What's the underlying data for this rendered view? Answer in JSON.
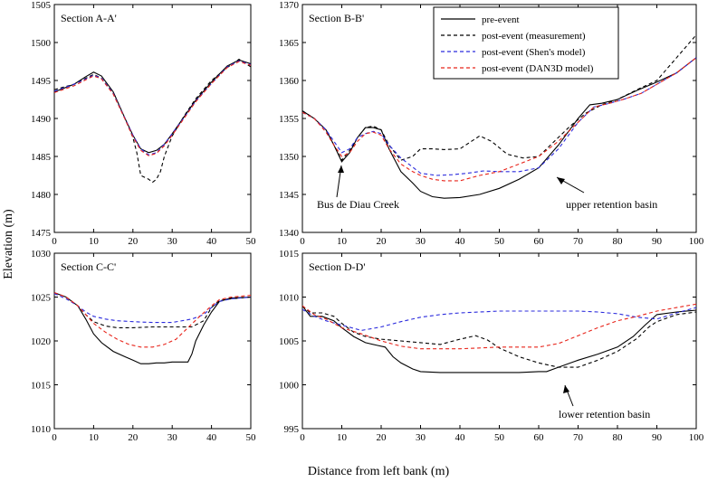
{
  "figure": {
    "ylabel": "Elevation (m)",
    "xlabel": "Distance from left bank (m)"
  },
  "styles": {
    "pre-event": {
      "color": "#000000",
      "dash": ""
    },
    "post-event (measurement)": {
      "color": "#000000",
      "dash": "4,3"
    },
    "post-event (Shen's model)": {
      "color": "#2b2bdd",
      "dash": "4,3"
    },
    "post-event (DAN3D model)": {
      "color": "#e8241a",
      "dash": "4,3"
    }
  },
  "legend": [
    "pre-event",
    "post-event (measurement)",
    "post-event (Shen's model)",
    "post-event (DAN3D model)"
  ],
  "chart_data": [
    {
      "id": "A",
      "type": "line",
      "title": "Section A-A'",
      "xlim": [
        0,
        50
      ],
      "ylim": [
        1475,
        1505
      ],
      "xticks": [
        0,
        10,
        20,
        30,
        40,
        50
      ],
      "yticks": [
        1475,
        1480,
        1485,
        1490,
        1495,
        1500,
        1505
      ],
      "series": [
        {
          "name": "pre-event",
          "x": [
            0,
            5,
            8,
            10,
            12,
            15,
            18,
            20,
            22,
            24,
            26,
            28,
            30,
            33,
            36,
            40,
            44,
            47,
            50
          ],
          "y": [
            1493.5,
            1494.5,
            1495.5,
            1496.1,
            1495.6,
            1493.5,
            1490,
            1487.8,
            1486,
            1485.5,
            1485.8,
            1486.6,
            1488,
            1490.2,
            1492.4,
            1494.8,
            1496.9,
            1497.7,
            1497.2
          ]
        },
        {
          "name": "post-event (measurement)",
          "x": [
            0,
            5,
            8,
            10,
            12,
            15,
            18,
            20,
            21,
            22,
            24,
            25,
            26,
            27,
            28,
            30,
            33,
            36,
            40,
            44,
            47,
            50
          ],
          "y": [
            1493.8,
            1494.5,
            1495.3,
            1495.8,
            1495.3,
            1493.3,
            1490,
            1487.5,
            1485.5,
            1482.5,
            1482,
            1481.6,
            1482,
            1483,
            1485,
            1487.7,
            1490.3,
            1492.6,
            1495,
            1496.7,
            1497.8,
            1496.8
          ]
        },
        {
          "name": "post-event (Shen's model)",
          "x": [
            0,
            5,
            8,
            10,
            12,
            15,
            18,
            20,
            22,
            24,
            26,
            28,
            30,
            33,
            36,
            40,
            44,
            47,
            50
          ],
          "y": [
            1493.6,
            1494.5,
            1495.2,
            1495.7,
            1495.3,
            1493.3,
            1490,
            1487.8,
            1486,
            1485.2,
            1485.5,
            1486.6,
            1488,
            1490.1,
            1492.3,
            1494.6,
            1496.8,
            1497.6,
            1497.1
          ]
        },
        {
          "name": "post-event (DAN3D model)",
          "x": [
            0,
            5,
            8,
            10,
            12,
            15,
            18,
            20,
            22,
            24,
            26,
            28,
            30,
            33,
            36,
            40,
            44,
            47,
            50
          ],
          "y": [
            1493.4,
            1494.3,
            1495.1,
            1495.6,
            1495.2,
            1493.2,
            1489.9,
            1487.6,
            1485.8,
            1485.1,
            1485.4,
            1486.4,
            1487.8,
            1490,
            1492.2,
            1494.6,
            1496.7,
            1497.5,
            1497
          ]
        }
      ]
    },
    {
      "id": "B",
      "type": "line",
      "title": "Section B-B'",
      "xlim": [
        0,
        100
      ],
      "ylim": [
        1340,
        1370
      ],
      "xticks": [
        0,
        10,
        20,
        30,
        40,
        50,
        60,
        70,
        80,
        90,
        100
      ],
      "yticks": [
        1340,
        1345,
        1350,
        1355,
        1360,
        1365,
        1370
      ],
      "annotations": [
        "Bus de Diau Creek",
        "upper retention basin"
      ],
      "series": [
        {
          "name": "pre-event",
          "x": [
            0,
            3,
            6,
            8,
            10,
            12,
            14,
            16,
            18,
            20,
            22,
            25,
            28,
            30,
            33,
            36,
            40,
            45,
            50,
            55,
            60,
            65,
            70,
            73,
            76,
            80,
            85,
            90,
            95,
            100
          ],
          "y": [
            1356,
            1355,
            1353.5,
            1351.5,
            1349.3,
            1350.5,
            1352.5,
            1353.8,
            1353.8,
            1353.5,
            1351,
            1348,
            1346.5,
            1345.4,
            1344.7,
            1344.5,
            1344.6,
            1345,
            1345.8,
            1347,
            1348.5,
            1351.5,
            1355,
            1356.8,
            1357,
            1357.5,
            1358.7,
            1359.8,
            1361,
            1363
          ]
        },
        {
          "name": "post-event (measurement)",
          "x": [
            0,
            3,
            6,
            8,
            10,
            12,
            14,
            16,
            18,
            20,
            22,
            25,
            28,
            30,
            33,
            36,
            40,
            45,
            48,
            52,
            56,
            60,
            64,
            68,
            72,
            76,
            80,
            85,
            90,
            95,
            100
          ],
          "y": [
            1356,
            1355,
            1353.5,
            1351.5,
            1349.5,
            1350.8,
            1352.5,
            1353.8,
            1354,
            1353.5,
            1351.5,
            1349.5,
            1350,
            1351,
            1351,
            1350.9,
            1351,
            1352.7,
            1352,
            1350.3,
            1349.8,
            1350,
            1352,
            1354,
            1355.7,
            1356.8,
            1357.5,
            1358.8,
            1360,
            1363,
            1366
          ]
        },
        {
          "name": "post-event (Shen's model)",
          "x": [
            0,
            3,
            6,
            8,
            10,
            12,
            14,
            16,
            18,
            20,
            22,
            25,
            28,
            30,
            34,
            38,
            42,
            46,
            50,
            55,
            60,
            65,
            70,
            74,
            78,
            82,
            86,
            90,
            95,
            100
          ],
          "y": [
            1355.8,
            1355,
            1353.5,
            1352,
            1350.5,
            1351,
            1352.5,
            1353,
            1353.3,
            1353,
            1351.5,
            1349.8,
            1348.6,
            1347.8,
            1347.5,
            1347.6,
            1347.8,
            1348.1,
            1348,
            1348,
            1348.5,
            1351,
            1354.5,
            1356.5,
            1357,
            1357.6,
            1358.3,
            1359.5,
            1361,
            1363
          ]
        },
        {
          "name": "post-event (DAN3D model)",
          "x": [
            0,
            3,
            6,
            8,
            10,
            12,
            14,
            16,
            18,
            20,
            22,
            25,
            28,
            30,
            33,
            36,
            40,
            45,
            50,
            55,
            60,
            65,
            70,
            74,
            78,
            82,
            86,
            90,
            95,
            100
          ],
          "y": [
            1355.8,
            1355,
            1353.2,
            1351.5,
            1350,
            1350.5,
            1352,
            1353,
            1353.2,
            1352.8,
            1351,
            1349,
            1348,
            1347.5,
            1347,
            1346.8,
            1346.8,
            1347.5,
            1348,
            1349,
            1350,
            1352,
            1354.5,
            1356.5,
            1357,
            1357.6,
            1358.3,
            1359.5,
            1361,
            1363
          ]
        }
      ]
    },
    {
      "id": "C",
      "type": "line",
      "title": "Section C-C'",
      "xlim": [
        0,
        50
      ],
      "ylim": [
        1010,
        1030
      ],
      "xticks": [
        0,
        10,
        20,
        30,
        40,
        50
      ],
      "yticks": [
        1010,
        1015,
        1020,
        1025,
        1030
      ],
      "series": [
        {
          "name": "pre-event",
          "x": [
            0,
            3,
            6,
            8,
            10,
            12,
            15,
            18,
            20,
            22,
            24,
            26,
            28,
            30,
            32,
            34,
            35,
            36,
            38,
            40,
            42,
            45,
            50
          ],
          "y": [
            1025.5,
            1025,
            1024,
            1022.5,
            1020.8,
            1019.8,
            1018.8,
            1018.2,
            1017.8,
            1017.4,
            1017.4,
            1017.5,
            1017.5,
            1017.6,
            1017.6,
            1017.6,
            1018.5,
            1020,
            1021.8,
            1023.3,
            1024.5,
            1024.9,
            1025
          ]
        },
        {
          "name": "post-event (measurement)",
          "x": [
            0,
            3,
            6,
            8,
            10,
            13,
            16,
            20,
            25,
            30,
            35,
            38,
            40,
            42,
            45,
            50
          ],
          "y": [
            1025.5,
            1025,
            1024,
            1023,
            1022.2,
            1021.7,
            1021.5,
            1021.5,
            1021.6,
            1021.6,
            1021.6,
            1022.3,
            1023.8,
            1024.6,
            1024.8,
            1025
          ]
        },
        {
          "name": "post-event (Shen's model)",
          "x": [
            0,
            3,
            6,
            8,
            10,
            13,
            16,
            20,
            25,
            30,
            35,
            38,
            40,
            42,
            45,
            50
          ],
          "y": [
            1025.4,
            1024.8,
            1024,
            1023.3,
            1022.8,
            1022.5,
            1022.3,
            1022.2,
            1022.1,
            1022.1,
            1022.5,
            1023,
            1023.8,
            1024.5,
            1024.8,
            1025
          ]
        },
        {
          "name": "post-event (DAN3D model)",
          "x": [
            0,
            3,
            6,
            8,
            10,
            13,
            16,
            19,
            22,
            25,
            28,
            31,
            34,
            37,
            40,
            42,
            45,
            50
          ],
          "y": [
            1025.5,
            1025,
            1024,
            1023,
            1022,
            1021,
            1020.2,
            1019.6,
            1019.3,
            1019.3,
            1019.6,
            1020.2,
            1021.5,
            1022.8,
            1024,
            1024.7,
            1025,
            1025.2
          ]
        }
      ]
    },
    {
      "id": "D",
      "type": "line",
      "title": "Section D-D'",
      "xlim": [
        0,
        100
      ],
      "ylim": [
        995,
        1015
      ],
      "xticks": [
        0,
        10,
        20,
        30,
        40,
        50,
        60,
        70,
        80,
        90,
        100
      ],
      "yticks": [
        995,
        1000,
        1005,
        1010,
        1015
      ],
      "annotations": [
        "lower retention basin"
      ],
      "series": [
        {
          "name": "pre-event",
          "x": [
            0,
            2,
            5,
            8,
            10,
            13,
            16,
            19,
            21,
            23,
            25,
            28,
            30,
            35,
            40,
            45,
            50,
            55,
            60,
            62,
            65,
            70,
            75,
            80,
            84,
            87,
            90,
            95,
            100
          ],
          "y": [
            1009,
            1007.8,
            1007.8,
            1007.3,
            1006.5,
            1005.5,
            1004.8,
            1004.5,
            1004.3,
            1003.2,
            1002.5,
            1001.8,
            1001.5,
            1001.4,
            1001.4,
            1001.4,
            1001.4,
            1001.4,
            1001.5,
            1001.5,
            1002,
            1002.8,
            1003.5,
            1004.3,
            1005.5,
            1006.8,
            1008,
            1008.3,
            1008.5
          ]
        },
        {
          "name": "post-event (measurement)",
          "x": [
            0,
            2,
            5,
            8,
            10,
            13,
            16,
            20,
            25,
            30,
            35,
            40,
            44,
            47,
            50,
            55,
            60,
            65,
            70,
            75,
            80,
            85,
            88,
            90,
            95,
            100
          ],
          "y": [
            1009,
            1008.2,
            1008.2,
            1007.8,
            1007,
            1006,
            1005.5,
            1005.2,
            1005,
            1004.8,
            1004.6,
            1005.2,
            1005.6,
            1005.1,
            1004.2,
            1003.2,
            1002.5,
            1002,
            1002,
            1002.8,
            1003.8,
            1005.3,
            1006.6,
            1007.2,
            1008,
            1008.3
          ]
        },
        {
          "name": "post-event (Shen's model)",
          "x": [
            0,
            3,
            6,
            10,
            15,
            20,
            25,
            30,
            35,
            40,
            45,
            50,
            55,
            60,
            65,
            70,
            75,
            80,
            85,
            90,
            95,
            100
          ],
          "y": [
            1008.6,
            1007.8,
            1007.3,
            1006.8,
            1006.2,
            1006.6,
            1007.2,
            1007.7,
            1008,
            1008.2,
            1008.3,
            1008.4,
            1008.4,
            1008.4,
            1008.4,
            1008.4,
            1008.3,
            1008.1,
            1007.7,
            1007.5,
            1008.2,
            1008.8
          ]
        },
        {
          "name": "post-event (DAN3D model)",
          "x": [
            0,
            3,
            6,
            10,
            15,
            20,
            25,
            30,
            35,
            40,
            45,
            50,
            55,
            60,
            65,
            70,
            75,
            80,
            85,
            90,
            95,
            100
          ],
          "y": [
            1009,
            1008,
            1007.5,
            1006.5,
            1005.8,
            1005,
            1004.4,
            1004.1,
            1004.1,
            1004.1,
            1004.2,
            1004.3,
            1004.3,
            1004.3,
            1004.7,
            1005.6,
            1006.5,
            1007.3,
            1007.8,
            1008.4,
            1008.8,
            1009.2
          ]
        }
      ]
    }
  ]
}
